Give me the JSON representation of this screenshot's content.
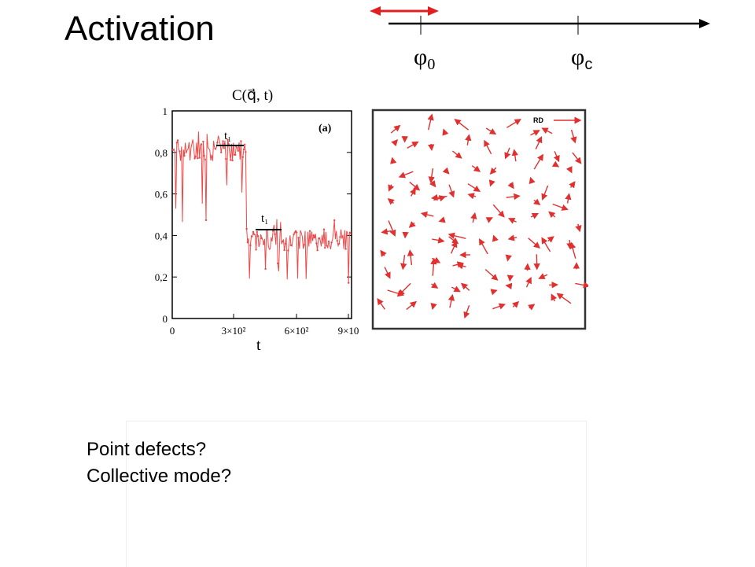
{
  "slide": {
    "title": "Activation",
    "axis": {
      "marks": [
        {
          "symbol": "φ",
          "subscript": "0"
        },
        {
          "symbol": "φ",
          "subscript": "c"
        }
      ]
    },
    "left_plot": {
      "header": "C(q⃗, t)",
      "panel_label": "(a)",
      "y_ticks": [
        "1",
        "0,8",
        "0,6",
        "0,4",
        "0,2",
        "0"
      ],
      "x_ticks": [
        "0",
        "3×10²",
        "6×10²",
        "9×10"
      ],
      "x_label": "t",
      "interval_label": "t₁"
    },
    "right_plot": {
      "legend": "RD"
    },
    "questions": [
      "Point defects?",
      "Collective mode?"
    ]
  },
  "colors": {
    "signal_red": "#f04848",
    "arrow_red": "#e03030",
    "black": "#000000"
  }
}
